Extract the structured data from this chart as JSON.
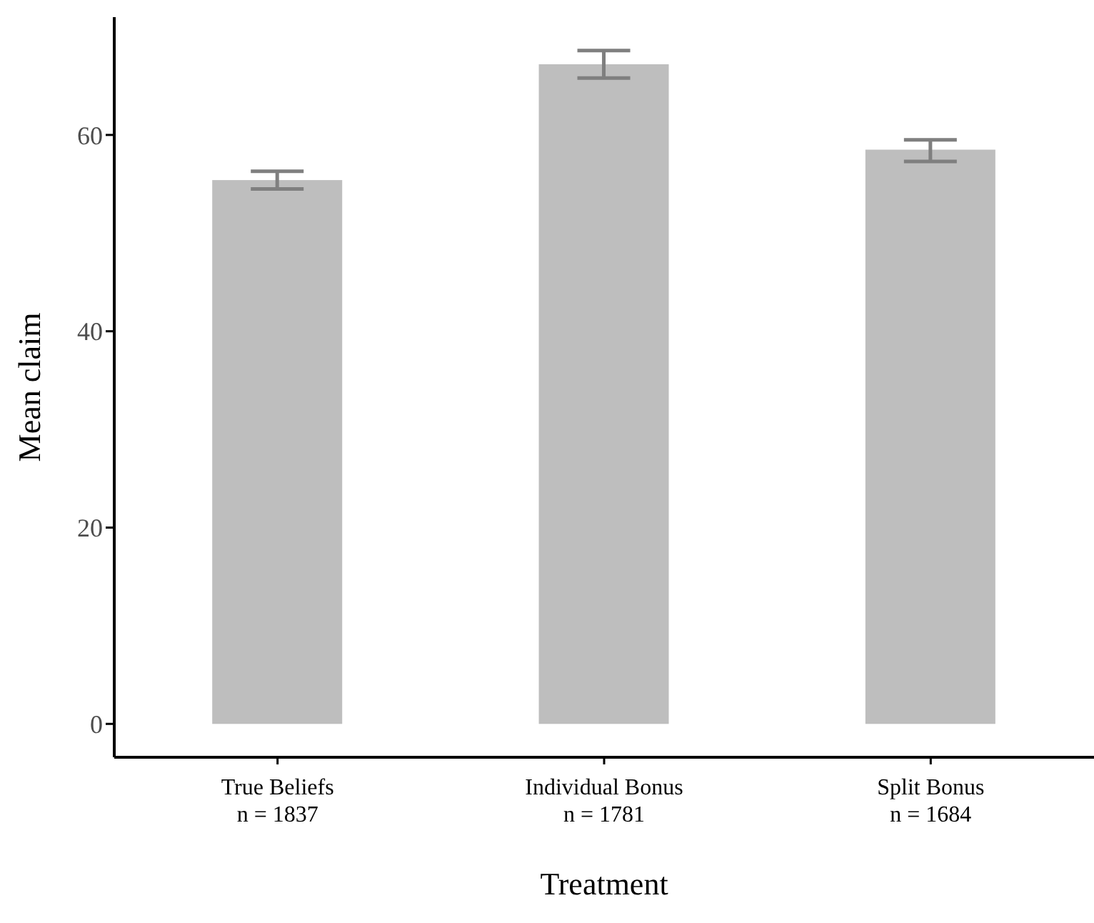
{
  "chart_data": {
    "type": "bar",
    "xlabel": "Treatment",
    "ylabel": "Mean claim",
    "categories": [
      "True Beliefs\nn = 1837",
      "Individual Bonus\nn = 1781",
      "Split Bonus\nn = 1684"
    ],
    "values": [
      55.4,
      67.2,
      58.5
    ],
    "color": "#bebebe",
    "errors": [
      [
        54.5,
        56.3
      ],
      [
        65.8,
        68.6
      ],
      [
        57.3,
        59.5
      ]
    ],
    "ylim": [
      -3.4,
      72
    ],
    "yticks": [
      0,
      20,
      40,
      60
    ]
  }
}
